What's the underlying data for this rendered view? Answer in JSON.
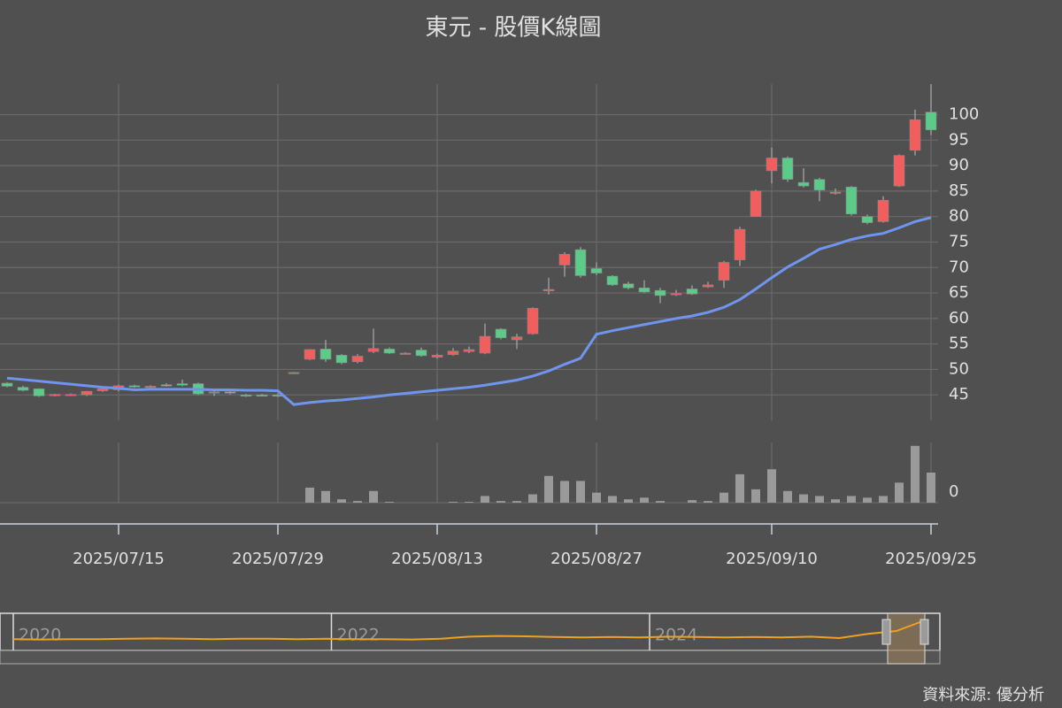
{
  "chart_data": {
    "type": "candlestick",
    "title": "東元 - 股價K線圖",
    "source": "資料來源: 優分析",
    "categories": [
      null,
      null,
      null,
      null,
      null,
      null,
      null,
      "2025/07/15",
      null,
      null,
      null,
      null,
      null,
      null,
      null,
      null,
      null,
      "2025/07/29",
      null,
      null,
      null,
      null,
      null,
      null,
      null,
      null,
      null,
      "2025/08/13",
      null,
      null,
      null,
      null,
      null,
      null,
      null,
      null,
      null,
      "2025/08/27",
      null,
      null,
      null,
      null,
      null,
      null,
      null,
      null,
      null,
      null,
      "2025/09/10",
      null,
      null,
      null,
      null,
      null,
      null,
      null,
      null,
      null,
      "2025/09/25"
    ],
    "open": [
      47.3,
      46.5,
      46.2,
      44.9,
      45,
      45,
      45.8,
      46,
      46.8,
      46.6,
      47,
      47.2,
      47.2,
      45.4,
      45.6,
      45,
      45,
      45,
      49.2,
      52,
      54,
      52.8,
      51.5,
      53.5,
      54,
      53.1,
      53.8,
      52.4,
      52.9,
      53.5,
      53.2,
      57.9,
      55.8,
      57,
      65.4,
      70.5,
      73.5,
      69.8,
      68.3,
      66.8,
      66,
      65.5,
      64.8,
      65.8,
      66.2,
      67.5,
      71.5,
      80,
      89,
      91.5,
      86.7,
      87.3,
      84.7,
      85.8,
      80,
      79,
      86,
      93,
      100.5
    ],
    "high": [
      47.5,
      46.8,
      46.3,
      45.2,
      45.3,
      45.8,
      46.4,
      47,
      47,
      46.9,
      47.3,
      48,
      47.4,
      46,
      45.9,
      45.2,
      45.2,
      45.3,
      49.5,
      54,
      55.8,
      53,
      53,
      58,
      54.3,
      53.4,
      54.3,
      53.1,
      54.2,
      54.5,
      59,
      58.1,
      57,
      62.2,
      68,
      73,
      74,
      71,
      68.5,
      67.2,
      67.5,
      66,
      65.6,
      66.5,
      67.2,
      71.3,
      78,
      85.3,
      93.5,
      91.8,
      89.5,
      87.6,
      85.5,
      86,
      80.4,
      84,
      92.2,
      101,
      106
    ],
    "low": [
      46.5,
      45.7,
      44.6,
      44.7,
      44.9,
      44.8,
      45.6,
      45.7,
      46.4,
      46.3,
      46.6,
      46.7,
      45,
      44.8,
      45.1,
      44.6,
      44.7,
      44.6,
      49.1,
      51.8,
      51.5,
      51,
      51.2,
      53.2,
      53,
      52.9,
      52.5,
      52.1,
      52.7,
      53.2,
      53,
      55.9,
      54,
      56.8,
      64.7,
      68.2,
      68,
      68.5,
      66.4,
      65.7,
      65,
      63,
      64.4,
      64.6,
      66,
      66,
      70.3,
      80,
      86.5,
      86.8,
      85.7,
      83,
      84.3,
      80.2,
      78.5,
      78.8,
      85.8,
      92,
      96
    ],
    "close": [
      46.7,
      45.9,
      44.8,
      45.1,
      45.1,
      45.7,
      46.2,
      46.8,
      46.6,
      46.7,
      46.8,
      46.9,
      45.2,
      45.6,
      45.4,
      44.8,
      44.8,
      44.9,
      49.4,
      53.9,
      52,
      51.3,
      52.6,
      54.1,
      53.2,
      53.2,
      52.7,
      52.8,
      53.6,
      53.9,
      56.5,
      56.2,
      56.4,
      62,
      65.7,
      72.6,
      68.4,
      68.9,
      66.6,
      66,
      65.2,
      64.5,
      64.9,
      64.8,
      66.6,
      71,
      77.5,
      85,
      91.5,
      87.3,
      86,
      85.2,
      84.8,
      80.5,
      78.8,
      83.2,
      92,
      99,
      97
    ],
    "up_color": "#f25d5d",
    "down_color": "#5ccb8a",
    "ma": {
      "color": "#6f95f0",
      "values": [
        48.3,
        48.0,
        47.7,
        47.4,
        47.1,
        46.8,
        46.5,
        46.3,
        46.0,
        46.1,
        46.1,
        46.1,
        46.1,
        46.0,
        46.0,
        45.9,
        45.9,
        45.8,
        43.1,
        43.5,
        43.8,
        44.0,
        44.3,
        44.6,
        45.0,
        45.3,
        45.6,
        45.9,
        46.2,
        46.5,
        46.9,
        47.4,
        47.9,
        48.7,
        49.7,
        51.0,
        52.2,
        56.9,
        57.6,
        58.2,
        58.8,
        59.4,
        60.0,
        60.5,
        61.2,
        62.2,
        63.7,
        65.8,
        68.0,
        70.1,
        71.8,
        73.6,
        74.5,
        75.5,
        76.2,
        76.7,
        77.8,
        79.0,
        79.8
      ]
    },
    "ylim": [
      40,
      106
    ],
    "yticks": [
      45,
      50,
      55,
      60,
      65,
      70,
      75,
      80,
      85,
      90,
      95,
      100
    ],
    "grid": true,
    "volume": {
      "color": "#9a9a9a",
      "ylim": [
        0,
        72
      ],
      "yticks": [
        0
      ],
      "values": [
        0,
        0,
        0,
        0,
        0,
        0,
        0,
        0,
        0,
        0,
        0,
        0,
        0,
        0,
        0,
        0,
        0,
        0,
        0,
        18,
        14,
        4,
        2,
        14,
        1,
        0,
        0,
        0,
        1,
        1,
        8,
        2,
        2,
        10,
        32,
        26,
        26,
        12,
        8,
        4,
        6,
        2,
        0,
        3,
        2,
        12,
        34,
        16,
        40,
        14,
        10,
        8,
        4,
        8,
        6,
        8,
        24,
        68,
        36
      ]
    },
    "navigator": {
      "color": "#f0a020",
      "labels": [
        "2020",
        "2022",
        "2024"
      ],
      "ylim": [
        20,
        110
      ],
      "values": [
        47,
        46,
        47,
        47,
        48,
        49,
        48,
        47,
        48,
        48,
        47,
        48,
        47,
        47,
        46,
        48,
        54,
        56,
        55,
        53,
        52,
        53,
        52,
        54,
        53,
        52,
        53,
        52,
        54,
        50,
        62,
        70,
        100
      ]
    }
  }
}
